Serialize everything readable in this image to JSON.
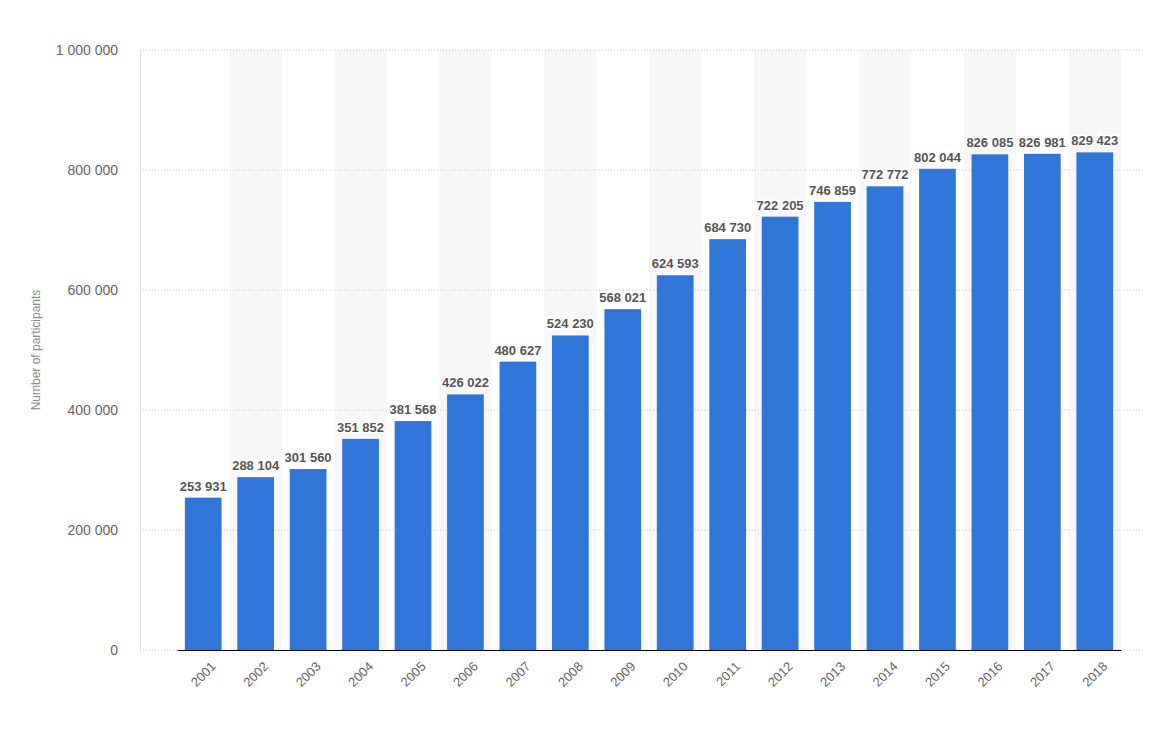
{
  "chart_data": {
    "type": "bar",
    "y_label": "Number of participants",
    "categories": [
      "2001",
      "2002",
      "2003",
      "2004",
      "2005",
      "2006",
      "2007",
      "2008",
      "2009",
      "2010",
      "2011",
      "2012",
      "2013",
      "2014",
      "2015",
      "2016",
      "2017",
      "2018"
    ],
    "values": [
      253931,
      288104,
      301560,
      351852,
      381568,
      426022,
      480627,
      524230,
      568021,
      624593,
      684730,
      722205,
      746859,
      772772,
      802044,
      826085,
      826981,
      829423
    ],
    "value_labels": [
      "253 931",
      "288 104",
      "301 560",
      "351 852",
      "381 568",
      "426 022",
      "480 627",
      "524 230",
      "568 021",
      "624 593",
      "684 730",
      "722 205",
      "746 859",
      "772 772",
      "802 044",
      "826 085",
      "826 981",
      "829 423"
    ],
    "color": "#2f76d8",
    "ylim": [
      0,
      1000000
    ],
    "yticks": [
      0,
      {
        "value": 200000,
        "label": "200 000"
      },
      {
        "value": 400000,
        "label": "400 000"
      },
      {
        "value": 600000,
        "label": "600 000"
      },
      {
        "value": 800000,
        "label": "800 000"
      },
      {
        "value": 1000000,
        "label": "1 000 000"
      }
    ],
    "grid": true,
    "data_labels": true
  }
}
